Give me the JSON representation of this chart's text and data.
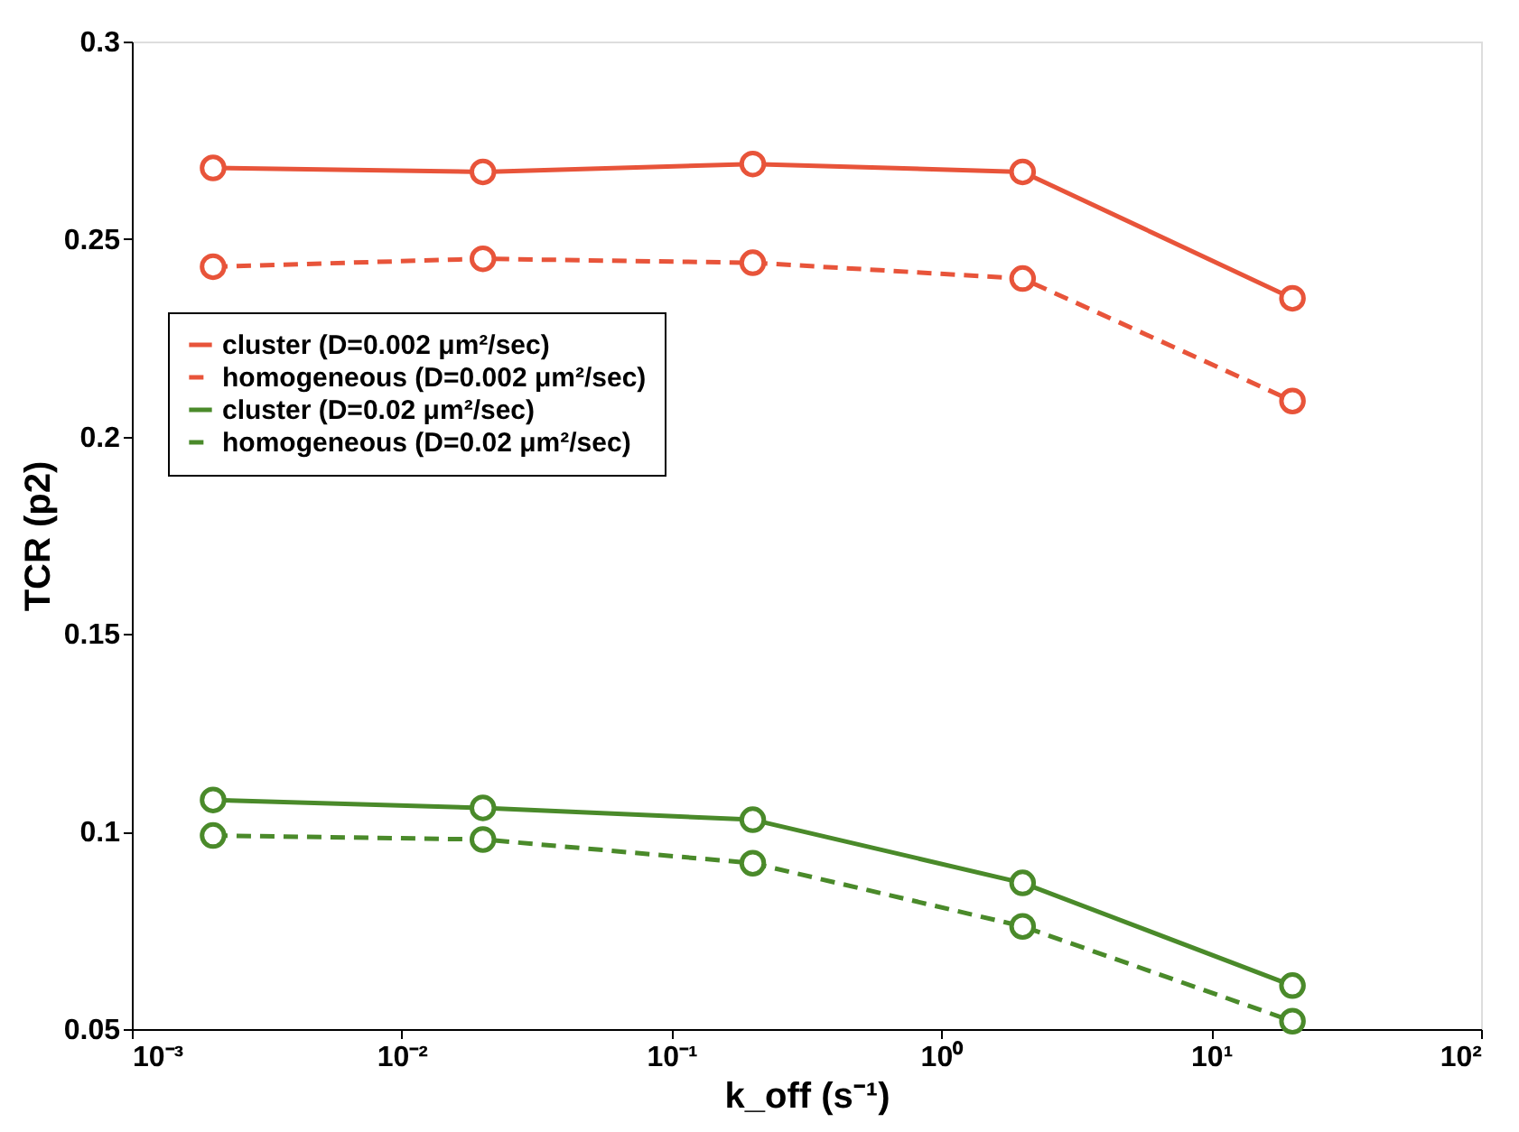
{
  "chart_data": {
    "type": "line",
    "xlabel": "k_off (s⁻¹)",
    "ylabel": "TCR (p2)",
    "x": [
      0.002,
      0.02,
      0.2,
      2,
      20
    ],
    "series": [
      {
        "name": "cluster (D=0.002 μm²/sec)",
        "color": "#e8543a",
        "line_style": "solid",
        "values": [
          0.268,
          0.267,
          0.269,
          0.267,
          0.235
        ]
      },
      {
        "name": "homogeneous (D=0.002 μm²/sec)",
        "color": "#e8543a",
        "line_style": "dashed",
        "values": [
          0.243,
          0.245,
          0.244,
          0.24,
          0.209
        ]
      },
      {
        "name": "cluster (D=0.02 μm²/sec)",
        "color": "#4a8a2a",
        "line_style": "solid",
        "values": [
          0.108,
          0.106,
          0.103,
          0.087,
          0.061
        ]
      },
      {
        "name": "homogeneous (D=0.02 μm²/sec)",
        "color": "#4a8a2a",
        "line_style": "dashed",
        "values": [
          0.099,
          0.098,
          0.092,
          0.076,
          0.052
        ]
      }
    ],
    "log": "x",
    "xlim": [
      0.001,
      100
    ],
    "xticks": [
      {
        "value": 0.001,
        "label": "10⁻³"
      },
      {
        "value": 0.01,
        "label": "10⁻²"
      },
      {
        "value": 0.1,
        "label": "10⁻¹"
      },
      {
        "value": 1,
        "label": "10⁰"
      },
      {
        "value": 10,
        "label": "10¹"
      },
      {
        "value": 100,
        "label": "10²"
      }
    ],
    "ylim": [
      0.05,
      0.3
    ],
    "yticks": [
      0.05,
      0.1,
      0.15,
      0.2,
      0.25,
      0.3
    ],
    "marker": "circle",
    "legend": "left",
    "grid": false
  }
}
